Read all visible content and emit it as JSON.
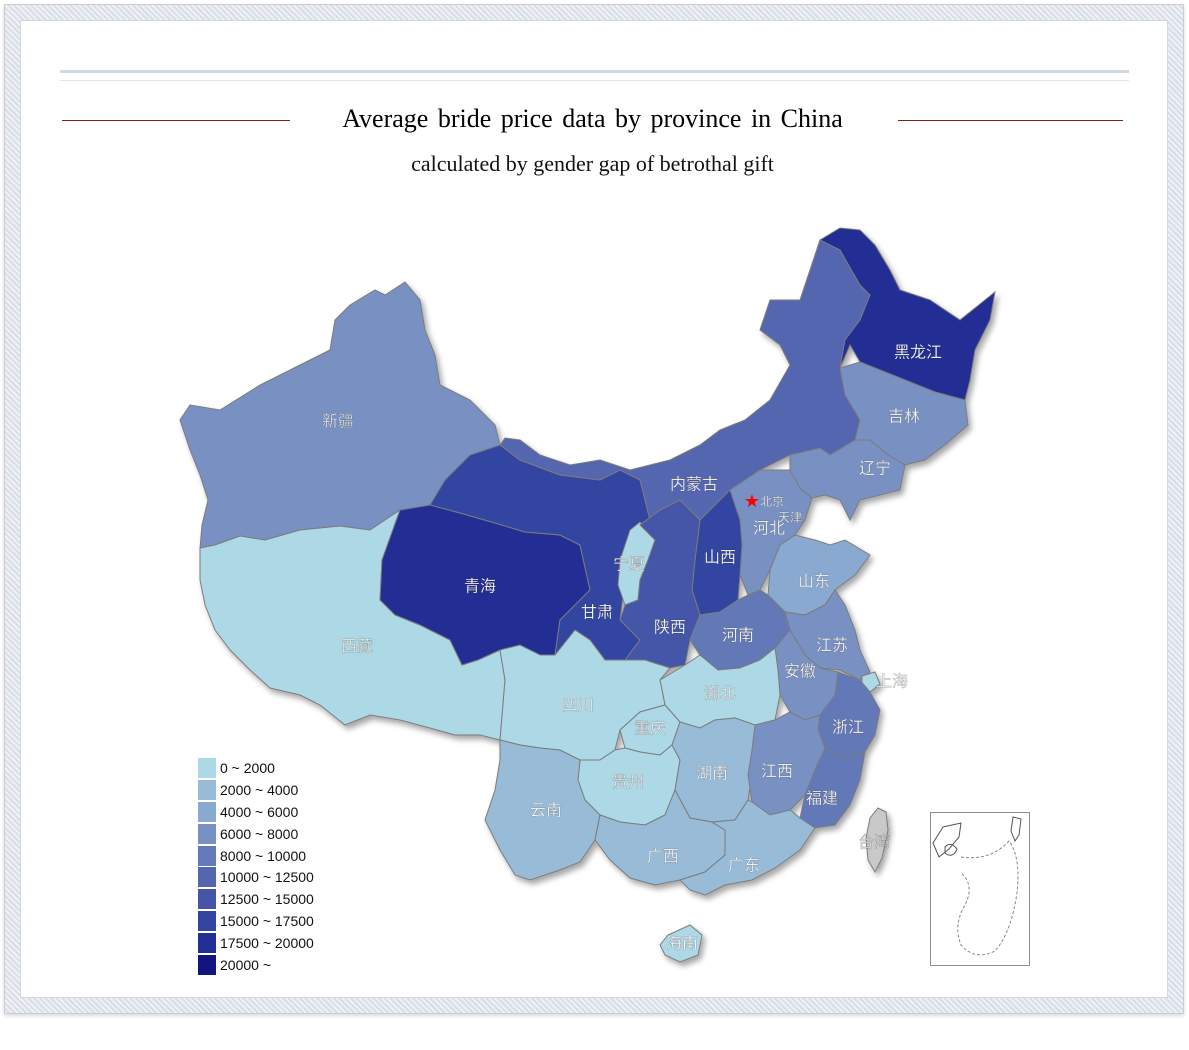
{
  "title": "Average  bride price data by province  in China",
  "subtitle": "calculated by gender gap of betrothal gift",
  "colors": {
    "ramp": [
      "#add8e6",
      "#98bcd8",
      "#8aa9d0",
      "#7891c2",
      "#6479b7",
      "#5466b0",
      "#4556a8",
      "#3345a0",
      "#222f93",
      "#121480"
    ],
    "border": "#7b7b7b",
    "capital_star": "#ff0000",
    "label_dark": "#ffffff",
    "label_light": "#f4f4f4"
  },
  "legend": {
    "items": [
      {
        "label": "0 ~ 2000"
      },
      {
        "label": "2000 ~ 4000"
      },
      {
        "label": "4000 ~ 6000"
      },
      {
        "label": "6000 ~ 8000"
      },
      {
        "label": "8000 ~ 10000"
      },
      {
        "label": "10000 ~ 12500"
      },
      {
        "label": "12500 ~ 15000"
      },
      {
        "label": "15000 ~ 17500"
      },
      {
        "label": "17500 ~ 20000"
      },
      {
        "label": "20000 ~"
      }
    ]
  },
  "regions": [
    {
      "name": "新疆",
      "bin": 3
    },
    {
      "name": "西藏",
      "bin": 0
    },
    {
      "name": "青海",
      "bin": 8
    },
    {
      "name": "甘肃",
      "bin": 7
    },
    {
      "name": "宁夏",
      "bin": 0
    },
    {
      "name": "内蒙古",
      "bin": 5
    },
    {
      "name": "黑龙江",
      "bin": 8
    },
    {
      "name": "吉林",
      "bin": 3
    },
    {
      "name": "辽宁",
      "bin": 3
    },
    {
      "name": "北京",
      "bin": 4
    },
    {
      "name": "天津",
      "bin": 9
    },
    {
      "name": "河北",
      "bin": 3
    },
    {
      "name": "山西",
      "bin": 7
    },
    {
      "name": "陕西",
      "bin": 6
    },
    {
      "name": "山东",
      "bin": 2
    },
    {
      "name": "河南",
      "bin": 4
    },
    {
      "name": "江苏",
      "bin": 3
    },
    {
      "name": "安徽",
      "bin": 3
    },
    {
      "name": "上海",
      "bin": 0
    },
    {
      "name": "浙江",
      "bin": 4
    },
    {
      "name": "湖北",
      "bin": 0
    },
    {
      "name": "四川",
      "bin": 0
    },
    {
      "name": "重庆",
      "bin": 0
    },
    {
      "name": "贵州",
      "bin": 0
    },
    {
      "name": "湖南",
      "bin": 1
    },
    {
      "name": "江西",
      "bin": 3
    },
    {
      "name": "福建",
      "bin": 4
    },
    {
      "name": "云南",
      "bin": 1
    },
    {
      "name": "广西",
      "bin": 1
    },
    {
      "name": "广东",
      "bin": 1
    },
    {
      "name": "海南",
      "bin": 0
    },
    {
      "name": "台湾",
      "bin": null
    }
  ]
}
